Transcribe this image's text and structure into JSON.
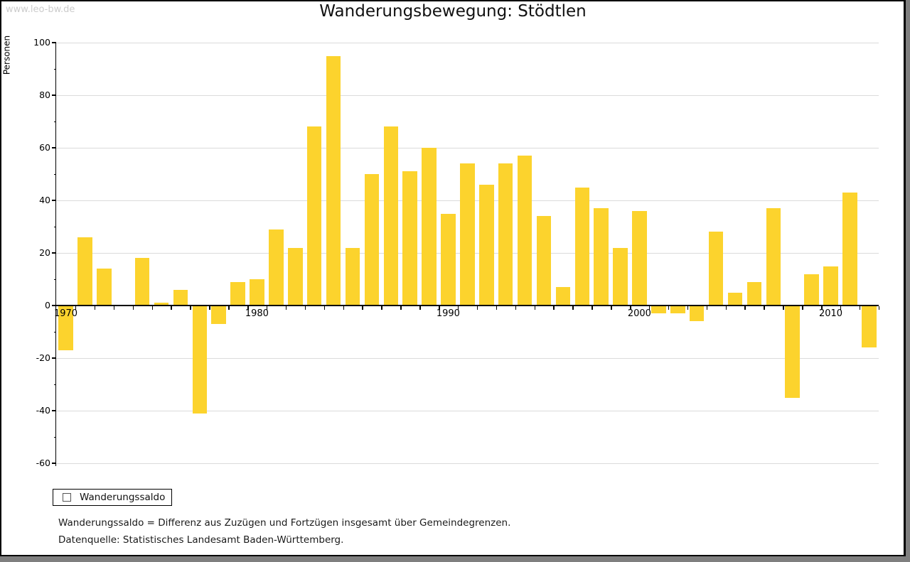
{
  "window": {
    "watermark": "www.leo-bw.de"
  },
  "chart_data": {
    "type": "bar",
    "title": "Wanderungsbewegung: Stödtlen",
    "xlabel": "",
    "ylabel": "Personen",
    "series_name": "Wanderungssaldo",
    "categories": [
      1970,
      1971,
      1972,
      1973,
      1974,
      1975,
      1976,
      1977,
      1978,
      1979,
      1980,
      1981,
      1982,
      1983,
      1984,
      1985,
      1986,
      1987,
      1988,
      1989,
      1990,
      1991,
      1992,
      1993,
      1994,
      1995,
      1996,
      1997,
      1998,
      1999,
      2000,
      2001,
      2002,
      2003,
      2004,
      2005,
      2006,
      2007,
      2008,
      2009,
      2010,
      2011,
      2012
    ],
    "values": [
      -17,
      26,
      14,
      0,
      18,
      1,
      6,
      -41,
      -7,
      9,
      10,
      29,
      22,
      68,
      95,
      22,
      50,
      68,
      51,
      60,
      35,
      54,
      46,
      54,
      57,
      34,
      7,
      45,
      37,
      22,
      36,
      -3,
      -3,
      -6,
      28,
      5,
      9,
      37,
      -35,
      12,
      15,
      43,
      -16
    ],
    "ylim": [
      -60,
      100
    ],
    "yticks": [
      100,
      80,
      60,
      40,
      20,
      0,
      -20,
      -40,
      -60
    ],
    "ytick_minor_step": 10,
    "xticks": [
      1970,
      1980,
      1990,
      2000,
      2010
    ],
    "grid": true,
    "legend_position": "bottom-left",
    "colors": {
      "bar": "#FCD32D",
      "grid": "#dbdbdb",
      "axis": "#000000"
    }
  },
  "footnotes": {
    "definition": "Wanderungssaldo = Differenz aus Zuzügen und Fortzügen insgesamt über Gemeindegrenzen.",
    "source": "Datenquelle: Statistisches Landesamt Baden-Württemberg."
  }
}
